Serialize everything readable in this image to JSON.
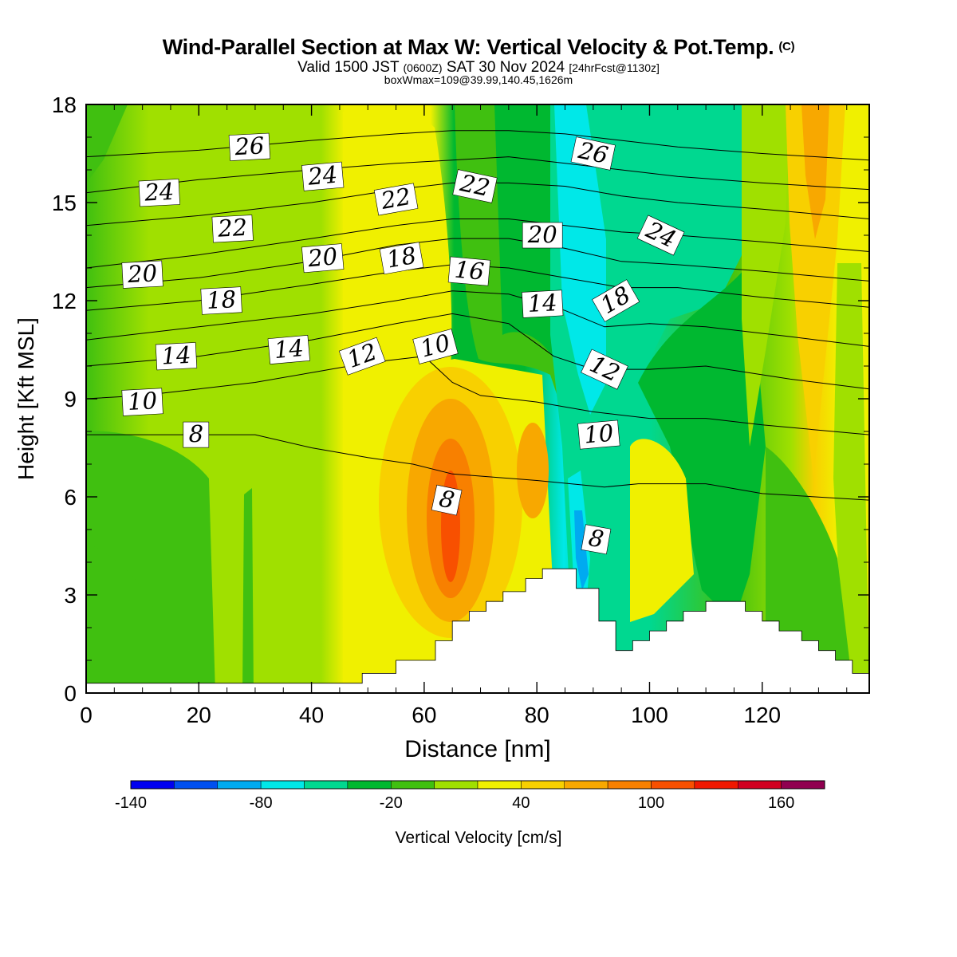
{
  "header": {
    "title": "Wind-Parallel Section at Max W: Vertical Velocity & Pot.Temp.",
    "title_mark": "(C)",
    "valid_a": "Valid 1500 JST",
    "valid_b": "(0600Z)",
    "valid_c": "SAT 30 Nov 2024",
    "valid_d": "[24hrFcst@1130z]",
    "box_line": "boxWmax=109@39.99,140.45,1626m"
  },
  "chart_data": {
    "type": "heatmap",
    "title": "Wind-Parallel Section at Max W: Vertical Velocity & Pot.Temp.",
    "xlabel": "Distance [nm]",
    "ylabel": "Height [Kft MSL]",
    "xlim": [
      0,
      139
    ],
    "ylim": [
      0,
      18
    ],
    "x_ticks": [
      0,
      20,
      40,
      60,
      80,
      100,
      120
    ],
    "y_ticks": [
      0,
      3,
      6,
      9,
      12,
      15,
      18
    ],
    "grid": false,
    "colorbar": {
      "label": "Vertical Velocity [cm/s]",
      "placement": "bottom",
      "tick_values": [
        -140,
        -80,
        -20,
        40,
        100,
        160
      ],
      "tick_labels": [
        "-140",
        "-80",
        "-20",
        "40",
        "100",
        "160"
      ],
      "bins": [
        -140,
        -120,
        -100,
        -80,
        -60,
        -40,
        -20,
        0,
        20,
        40,
        60,
        80,
        100,
        120,
        140,
        160,
        180
      ],
      "colors": [
        "#0000f0",
        "#0050f0",
        "#00aaf0",
        "#00e8e8",
        "#00d890",
        "#00b830",
        "#40c010",
        "#a0e000",
        "#f0f000",
        "#f8d000",
        "#f8a800",
        "#f88000",
        "#f85000",
        "#f01800",
        "#d00020",
        "#900050",
        "#600090"
      ]
    },
    "w_columns": [
      {
        "x": 0,
        "w": "green"
      },
      {
        "x": 10,
        "w": "light-green"
      },
      {
        "x": 30,
        "w": "light-green"
      },
      {
        "x": 48,
        "w": "yellow"
      },
      {
        "x": 65,
        "w": "orange"
      },
      {
        "x": 70,
        "w": "yellow"
      },
      {
        "x": 80,
        "w": "yellow-orange"
      },
      {
        "x": 86,
        "w": "cyan"
      },
      {
        "x": 95,
        "w": "green"
      },
      {
        "x": 103,
        "w": "yellow"
      },
      {
        "x": 115,
        "w": "green"
      },
      {
        "x": 130,
        "w": "yellow-orange"
      }
    ],
    "max_w_cms": 109,
    "terrain_kft": [
      [
        0,
        0.3
      ],
      [
        49,
        0.3
      ],
      [
        49,
        0.6
      ],
      [
        55,
        0.6
      ],
      [
        55,
        1.0
      ],
      [
        62,
        1.0
      ],
      [
        62,
        1.6
      ],
      [
        65,
        1.6
      ],
      [
        65,
        2.2
      ],
      [
        68,
        2.2
      ],
      [
        68,
        2.5
      ],
      [
        71,
        2.5
      ],
      [
        71,
        2.8
      ],
      [
        74,
        2.8
      ],
      [
        74,
        3.1
      ],
      [
        78,
        3.1
      ],
      [
        78,
        3.5
      ],
      [
        81,
        3.5
      ],
      [
        81,
        3.8
      ],
      [
        87,
        3.8
      ],
      [
        87,
        3.2
      ],
      [
        91,
        3.2
      ],
      [
        91,
        2.2
      ],
      [
        94,
        2.2
      ],
      [
        94,
        1.3
      ],
      [
        97,
        1.3
      ],
      [
        97,
        1.6
      ],
      [
        100,
        1.6
      ],
      [
        100,
        1.9
      ],
      [
        103,
        1.9
      ],
      [
        103,
        2.2
      ],
      [
        106,
        2.2
      ],
      [
        106,
        2.5
      ],
      [
        110,
        2.5
      ],
      [
        110,
        2.8
      ],
      [
        117,
        2.8
      ],
      [
        117,
        2.5
      ],
      [
        120,
        2.5
      ],
      [
        120,
        2.2
      ],
      [
        123,
        2.2
      ],
      [
        123,
        1.9
      ],
      [
        127,
        1.9
      ],
      [
        127,
        1.6
      ],
      [
        130,
        1.6
      ],
      [
        130,
        1.3
      ],
      [
        133,
        1.3
      ],
      [
        133,
        1.0
      ],
      [
        136,
        1.0
      ],
      [
        136,
        0.6
      ],
      [
        139,
        0.6
      ]
    ],
    "isentropes": [
      {
        "value": 8,
        "points": [
          [
            0,
            7.9
          ],
          [
            20,
            7.9
          ],
          [
            30,
            7.9
          ],
          [
            40,
            7.5
          ],
          [
            50,
            7.2
          ],
          [
            58,
            7.0
          ],
          [
            65,
            6.7
          ],
          [
            80,
            6.5
          ],
          [
            92,
            6.3
          ],
          [
            98,
            6.4
          ],
          [
            110,
            6.4
          ],
          [
            120,
            6.1
          ],
          [
            139,
            5.9
          ]
        ]
      },
      {
        "value": 10,
        "points": [
          [
            0,
            9.0
          ],
          [
            10,
            9.1
          ],
          [
            20,
            9.3
          ],
          [
            30,
            9.5
          ],
          [
            40,
            9.8
          ],
          [
            50,
            10.1
          ],
          [
            60,
            10.3
          ],
          [
            65,
            9.5
          ],
          [
            70,
            9.1
          ],
          [
            80,
            8.9
          ],
          [
            90,
            8.6
          ],
          [
            100,
            8.4
          ],
          [
            110,
            8.4
          ],
          [
            120,
            8.2
          ],
          [
            139,
            7.9
          ]
        ]
      },
      {
        "value": 12,
        "points": [
          [
            0,
            10.0
          ],
          [
            20,
            10.3
          ],
          [
            40,
            10.8
          ],
          [
            55,
            11.3
          ],
          [
            65,
            11.6
          ],
          [
            75,
            11.3
          ],
          [
            83,
            10.3
          ],
          [
            90,
            9.9
          ],
          [
            100,
            9.9
          ],
          [
            110,
            10.0
          ],
          [
            125,
            9.6
          ],
          [
            139,
            9.3
          ]
        ]
      },
      {
        "value": 14,
        "points": [
          [
            0,
            10.8
          ],
          [
            20,
            11.2
          ],
          [
            40,
            11.6
          ],
          [
            55,
            12.0
          ],
          [
            65,
            12.3
          ],
          [
            75,
            12.2
          ],
          [
            85,
            11.7
          ],
          [
            92,
            11.2
          ],
          [
            100,
            11.3
          ],
          [
            110,
            11.2
          ],
          [
            125,
            10.9
          ],
          [
            139,
            10.6
          ]
        ]
      },
      {
        "value": 16,
        "points": [
          [
            0,
            11.7
          ],
          [
            20,
            12.0
          ],
          [
            40,
            12.5
          ],
          [
            55,
            12.9
          ],
          [
            65,
            13.1
          ],
          [
            75,
            13.0
          ],
          [
            85,
            12.7
          ],
          [
            95,
            12.4
          ],
          [
            105,
            12.4
          ],
          [
            120,
            12.1
          ],
          [
            139,
            11.8
          ]
        ]
      },
      {
        "value": 18,
        "points": [
          [
            0,
            12.4
          ],
          [
            20,
            12.7
          ],
          [
            40,
            13.2
          ],
          [
            55,
            13.7
          ],
          [
            65,
            13.9
          ],
          [
            75,
            13.9
          ],
          [
            85,
            13.6
          ],
          [
            95,
            13.2
          ],
          [
            105,
            13.1
          ],
          [
            120,
            12.9
          ],
          [
            139,
            12.6
          ]
        ]
      },
      {
        "value": 20,
        "points": [
          [
            0,
            13.0
          ],
          [
            20,
            13.4
          ],
          [
            40,
            13.9
          ],
          [
            55,
            14.3
          ],
          [
            65,
            14.5
          ],
          [
            75,
            14.5
          ],
          [
            85,
            14.3
          ],
          [
            95,
            14.1
          ],
          [
            105,
            14.0
          ],
          [
            120,
            13.8
          ],
          [
            139,
            13.5
          ]
        ]
      },
      {
        "value": 22,
        "points": [
          [
            0,
            14.3
          ],
          [
            20,
            14.6
          ],
          [
            40,
            15.0
          ],
          [
            55,
            15.4
          ],
          [
            65,
            15.6
          ],
          [
            75,
            15.6
          ],
          [
            85,
            15.5
          ],
          [
            95,
            15.2
          ],
          [
            105,
            15.0
          ],
          [
            120,
            14.8
          ],
          [
            139,
            14.5
          ]
        ]
      },
      {
        "value": 24,
        "points": [
          [
            0,
            15.3
          ],
          [
            20,
            15.7
          ],
          [
            40,
            16.0
          ],
          [
            55,
            16.2
          ],
          [
            65,
            16.3
          ],
          [
            75,
            16.4
          ],
          [
            85,
            16.2
          ],
          [
            95,
            16.0
          ],
          [
            105,
            15.8
          ],
          [
            120,
            15.6
          ],
          [
            139,
            15.4
          ]
        ]
      },
      {
        "value": 26,
        "points": [
          [
            0,
            16.4
          ],
          [
            20,
            16.6
          ],
          [
            40,
            16.9
          ],
          [
            55,
            17.1
          ],
          [
            65,
            17.2
          ],
          [
            75,
            17.2
          ],
          [
            85,
            17.1
          ],
          [
            95,
            16.9
          ],
          [
            105,
            16.7
          ],
          [
            120,
            16.5
          ],
          [
            139,
            16.3
          ]
        ]
      }
    ],
    "contour_labels": [
      {
        "text": "26",
        "x": 29,
        "y": 16.7,
        "rot": -3
      },
      {
        "text": "24",
        "x": 13,
        "y": 15.3,
        "rot": -3
      },
      {
        "text": "24",
        "x": 42,
        "y": 15.8,
        "rot": -5
      },
      {
        "text": "22",
        "x": 26,
        "y": 14.2,
        "rot": -3
      },
      {
        "text": "22",
        "x": 55,
        "y": 15.1,
        "rot": -10
      },
      {
        "text": "22",
        "x": 69,
        "y": 15.5,
        "rot": 12
      },
      {
        "text": "26",
        "x": 90,
        "y": 16.5,
        "rot": 12
      },
      {
        "text": "20",
        "x": 10,
        "y": 12.8,
        "rot": -3
      },
      {
        "text": "20",
        "x": 42,
        "y": 13.3,
        "rot": -5
      },
      {
        "text": "18",
        "x": 56,
        "y": 13.3,
        "rot": -10
      },
      {
        "text": "16",
        "x": 68,
        "y": 12.9,
        "rot": 5
      },
      {
        "text": "20",
        "x": 81,
        "y": 14.0,
        "rot": 0
      },
      {
        "text": "24",
        "x": 102,
        "y": 14.0,
        "rot": 25
      },
      {
        "text": "18",
        "x": 24,
        "y": 12.0,
        "rot": -3
      },
      {
        "text": "14",
        "x": 81,
        "y": 11.9,
        "rot": -3
      },
      {
        "text": "18",
        "x": 94,
        "y": 12.0,
        "rot": -30
      },
      {
        "text": "14",
        "x": 16,
        "y": 10.3,
        "rot": -3
      },
      {
        "text": "14",
        "x": 36,
        "y": 10.5,
        "rot": -5
      },
      {
        "text": "12",
        "x": 49,
        "y": 10.3,
        "rot": -20
      },
      {
        "text": "10",
        "x": 62,
        "y": 10.6,
        "rot": -15
      },
      {
        "text": "12",
        "x": 92,
        "y": 9.9,
        "rot": 25
      },
      {
        "text": "10",
        "x": 10,
        "y": 8.9,
        "rot": -3
      },
      {
        "text": "8",
        "x": 19.5,
        "y": 7.9,
        "rot": 0
      },
      {
        "text": "10",
        "x": 91,
        "y": 7.9,
        "rot": -5
      },
      {
        "text": "8",
        "x": 64,
        "y": 5.9,
        "rot": 12
      },
      {
        "text": "8",
        "x": 90.5,
        "y": 4.7,
        "rot": 10
      }
    ]
  }
}
